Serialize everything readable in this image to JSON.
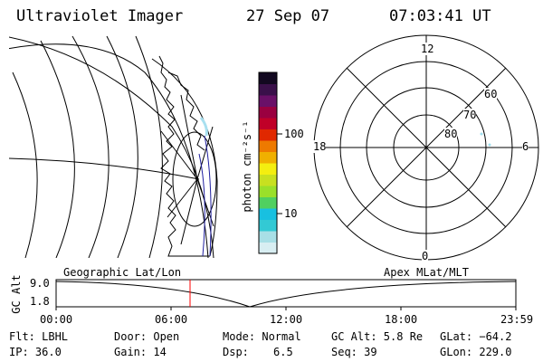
{
  "header": {
    "title": "Ultraviolet Imager",
    "date": "27 Sep 07",
    "time": "07:03:41 UT"
  },
  "colorbar": {
    "unit_label": "photon cm⁻²s⁻¹",
    "tick_100": "100",
    "tick_10": "10",
    "colors": [
      "#d8eef2",
      "#a8dfe6",
      "#33c9d4",
      "#18c0e0",
      "#50d060",
      "#9ae02a",
      "#c8e020",
      "#f4ee10",
      "#f0b000",
      "#ee7a00",
      "#e02800",
      "#c00028",
      "#9a0040",
      "#6a1068",
      "#3a104a",
      "#120820"
    ]
  },
  "polar_plot": {
    "mlt_top": "12",
    "mlt_left": "18",
    "mlt_right": "6",
    "mlt_bottom": "0",
    "lat_60": "60",
    "lat_70": "70",
    "lat_80": "80"
  },
  "altitude_plot": {
    "left_title": "Geographic Lat/Lon",
    "right_title": "Apex MLat/MLT",
    "ylabel": "GC Alt",
    "ytick_top": "9.0",
    "ytick_bottom": "1.8",
    "xticks": [
      "00:00",
      "06:00",
      "12:00",
      "18:00",
      "23:59"
    ],
    "current_time_color": "#ff0000"
  },
  "status": {
    "flt": "Flt: LBHL",
    "ip": "IP: 36.0",
    "door": "Door: Open",
    "gain": "Gain: 14",
    "mode": "Mode: Normal",
    "dsp_label": "Dsp:",
    "dsp_value": "6.5",
    "gc_alt": "GC Alt: 5.8 Re",
    "seq": "Seq: 39",
    "glat": "GLat: −64.2",
    "glon": "GLon: 229.0"
  }
}
